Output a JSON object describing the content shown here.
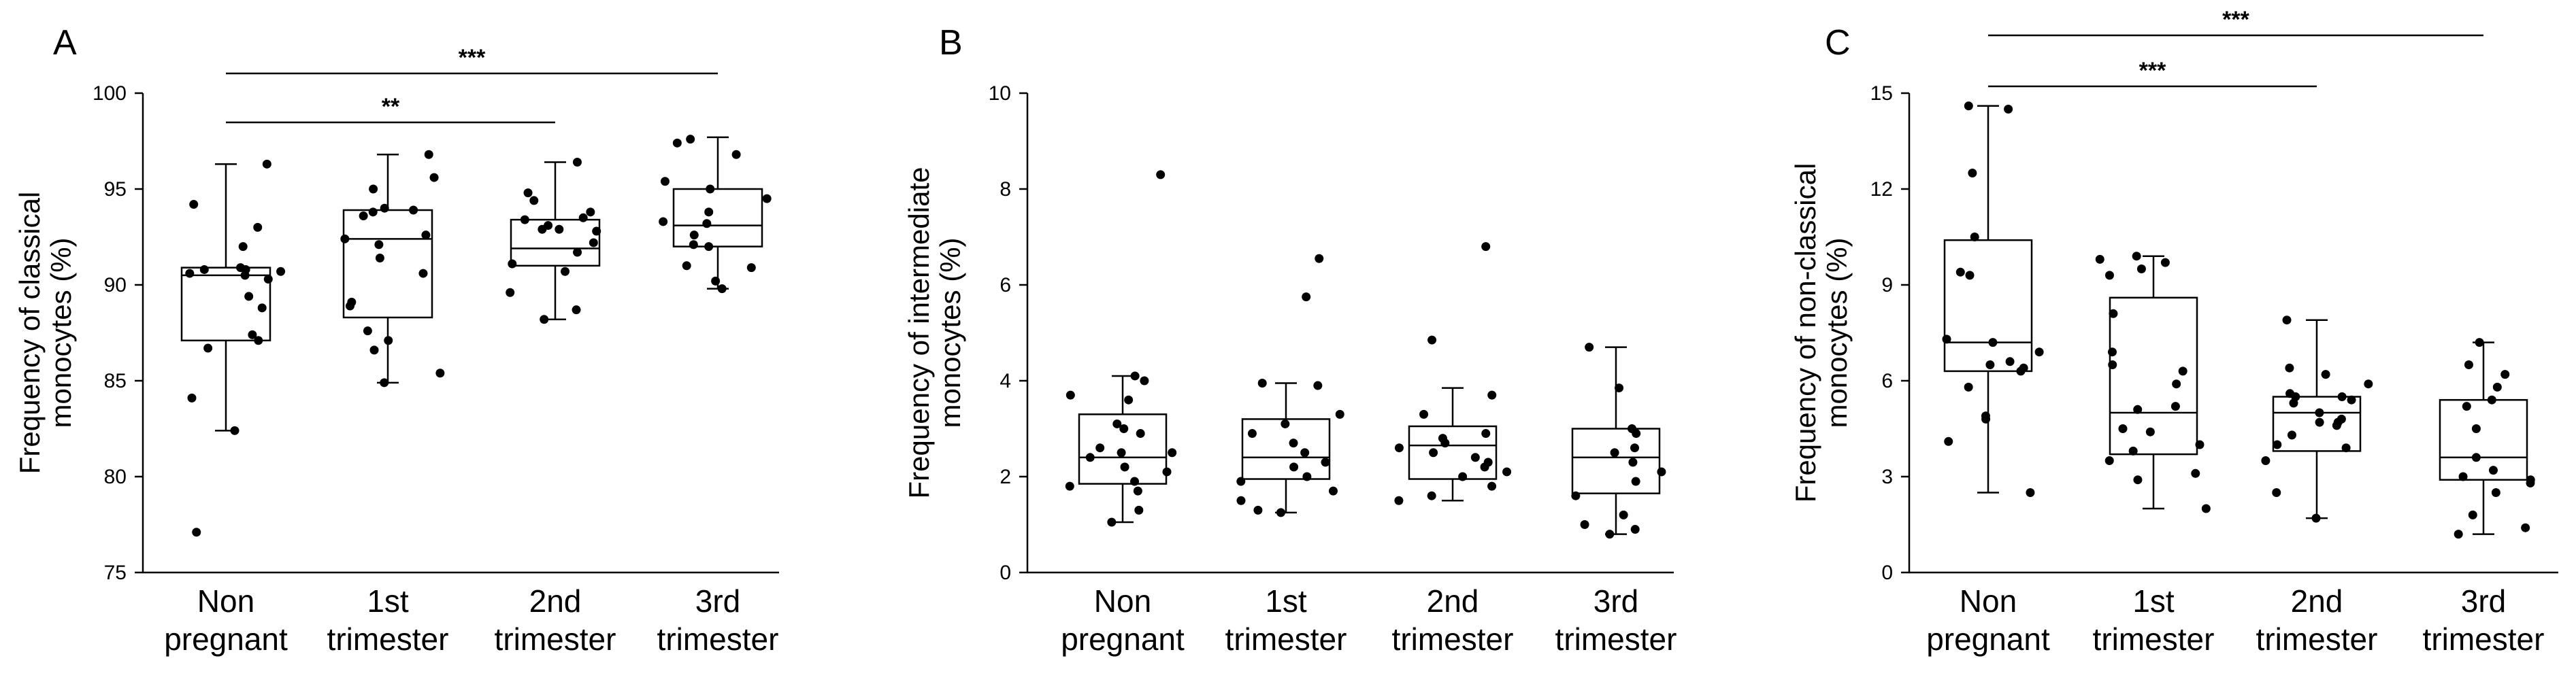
{
  "chart_data": [
    {
      "type": "box",
      "panel": "A",
      "ylabel": "Frequency  of classical monocytes (%)",
      "ylim": [
        75,
        100
      ],
      "yticks": [
        75,
        80,
        85,
        90,
        95,
        100
      ],
      "categories": [
        "Non pregnant",
        "1st trimester",
        "2nd trimester",
        "3rd trimester"
      ],
      "category_lines": [
        [
          "Non",
          "pregnant"
        ],
        [
          "1st",
          "trimester"
        ],
        [
          "2nd",
          "trimester"
        ],
        [
          "3rd",
          "trimester"
        ]
      ],
      "boxes": [
        {
          "q1": 87.1,
          "median": 90.5,
          "q3": 90.9,
          "whisker_low": 82.4,
          "whisker_high": 96.3
        },
        {
          "q1": 88.3,
          "median": 92.4,
          "q3": 93.9,
          "whisker_low": 84.9,
          "whisker_high": 96.8
        },
        {
          "q1": 91.0,
          "median": 91.9,
          "q3": 93.4,
          "whisker_low": 88.2,
          "whisker_high": 96.4
        },
        {
          "q1": 92.0,
          "median": 93.1,
          "q3": 95.0,
          "whisker_low": 89.8,
          "whisker_high": 97.7
        }
      ],
      "points": [
        [
          92.0,
          90.8,
          90.9,
          90.7,
          90.8,
          90.5,
          90.6,
          90.3,
          89.4,
          88.8,
          87.4,
          86.7,
          87.1,
          84.1,
          82.4,
          77.1,
          94.2,
          93.0,
          96.3
        ],
        [
          92.6,
          92.4,
          94.0,
          93.9,
          93.8,
          93.6,
          95.0,
          95.6,
          96.8,
          92.1,
          91.4,
          90.6,
          89.1,
          88.9,
          87.6,
          86.6,
          87.1,
          85.4,
          84.9
        ],
        [
          93.5,
          93.4,
          93.1,
          92.8,
          93.8,
          94.4,
          92.9,
          92.2,
          91.7,
          91.1,
          90.7,
          89.6,
          88.7,
          88.2,
          96.4,
          94.8,
          92.9
        ],
        [
          93.2,
          93.8,
          94.5,
          95.0,
          95.4,
          97.6,
          97.4,
          96.8,
          93.3,
          92.6,
          92.1,
          92.0,
          91.0,
          90.9,
          90.2,
          89.8
        ]
      ],
      "significance": [
        {
          "from": 0,
          "to": 2,
          "label": "**"
        },
        {
          "from": 0,
          "to": 3,
          "label": "***"
        }
      ]
    },
    {
      "type": "box",
      "panel": "B",
      "ylabel": "Frequency  of intermediate monocytes (%)",
      "ylim": [
        0,
        10
      ],
      "yticks": [
        0,
        2,
        4,
        6,
        8,
        10
      ],
      "categories": [
        "Non pregnant",
        "1st trimester",
        "2nd trimester",
        "3rd trimester"
      ],
      "category_lines": [
        [
          "Non",
          "pregnant"
        ],
        [
          "1st",
          "trimester"
        ],
        [
          "2nd",
          "trimester"
        ],
        [
          "3rd",
          "trimester"
        ]
      ],
      "boxes": [
        {
          "q1": 1.85,
          "median": 2.4,
          "q3": 3.3,
          "whisker_low": 1.05,
          "whisker_high": 4.1
        },
        {
          "q1": 1.95,
          "median": 2.4,
          "q3": 3.2,
          "whisker_low": 1.25,
          "whisker_high": 3.95
        },
        {
          "q1": 1.95,
          "median": 2.65,
          "q3": 3.05,
          "whisker_low": 1.5,
          "whisker_high": 3.85
        },
        {
          "q1": 1.65,
          "median": 2.4,
          "q3": 3.0,
          "whisker_low": 0.8,
          "whisker_high": 4.7
        }
      ],
      "points": [
        [
          8.3,
          4.1,
          4.0,
          3.7,
          3.6,
          3.1,
          3.0,
          2.9,
          2.6,
          2.5,
          2.5,
          2.4,
          2.2,
          2.1,
          1.9,
          1.8,
          1.7,
          1.3,
          1.05
        ],
        [
          6.55,
          5.75,
          3.95,
          3.9,
          3.3,
          3.1,
          2.9,
          2.7,
          2.5,
          2.3,
          2.2,
          2.0,
          1.9,
          1.7,
          1.5,
          1.3,
          1.25
        ],
        [
          6.8,
          4.85,
          3.7,
          3.3,
          2.9,
          2.8,
          2.7,
          2.6,
          2.5,
          2.4,
          2.3,
          2.2,
          2.1,
          2.0,
          1.8,
          1.6,
          1.5
        ],
        [
          4.7,
          3.85,
          3.0,
          2.9,
          2.6,
          2.5,
          2.3,
          2.1,
          1.9,
          1.6,
          1.2,
          1.0,
          0.9,
          0.8
        ]
      ],
      "significance": []
    },
    {
      "type": "box",
      "panel": "C",
      "ylabel": "Frequency  of non-classical monocytes (%)",
      "ylim": [
        0,
        15
      ],
      "yticks": [
        0,
        3,
        6,
        9,
        12,
        15
      ],
      "categories": [
        "Non pregnant",
        "1st trimester",
        "2nd trimester",
        "3rd trimester"
      ],
      "category_lines": [
        [
          "Non",
          "pregnant"
        ],
        [
          "1st",
          "trimester"
        ],
        [
          "2nd",
          "trimester"
        ],
        [
          "3rd",
          "trimester"
        ]
      ],
      "boxes": [
        {
          "q1": 6.3,
          "median": 7.2,
          "q3": 10.4,
          "whisker_low": 2.5,
          "whisker_high": 14.6
        },
        {
          "q1": 3.7,
          "median": 5.0,
          "q3": 8.6,
          "whisker_low": 2.0,
          "whisker_high": 9.9
        },
        {
          "q1": 3.8,
          "median": 5.0,
          "q3": 5.5,
          "whisker_low": 1.7,
          "whisker_high": 7.9
        },
        {
          "q1": 2.9,
          "median": 3.6,
          "q3": 5.4,
          "whisker_low": 1.2,
          "whisker_high": 7.2
        }
      ],
      "points": [
        [
          14.6,
          14.5,
          12.5,
          10.5,
          9.4,
          9.3,
          7.3,
          7.2,
          6.9,
          6.6,
          6.5,
          6.4,
          6.3,
          5.8,
          4.9,
          4.8,
          4.1,
          2.5
        ],
        [
          9.9,
          9.8,
          9.7,
          9.5,
          9.3,
          8.1,
          6.9,
          6.5,
          6.3,
          5.9,
          5.2,
          5.1,
          4.5,
          4.4,
          4.0,
          3.8,
          3.5,
          3.1,
          2.9,
          2.0
        ],
        [
          7.9,
          6.4,
          6.2,
          5.9,
          5.6,
          5.5,
          5.5,
          5.4,
          5.3,
          5.0,
          4.8,
          4.7,
          4.7,
          4.6,
          4.3,
          4.0,
          3.9,
          3.5,
          2.5,
          1.7
        ],
        [
          7.2,
          6.5,
          6.2,
          5.8,
          5.4,
          5.2,
          4.5,
          3.6,
          3.2,
          3.0,
          2.9,
          2.8,
          2.5,
          1.8,
          1.4,
          1.2
        ]
      ],
      "significance": [
        {
          "from": 0,
          "to": 2,
          "label": "***"
        },
        {
          "from": 0,
          "to": 3,
          "label": "***"
        }
      ]
    }
  ]
}
